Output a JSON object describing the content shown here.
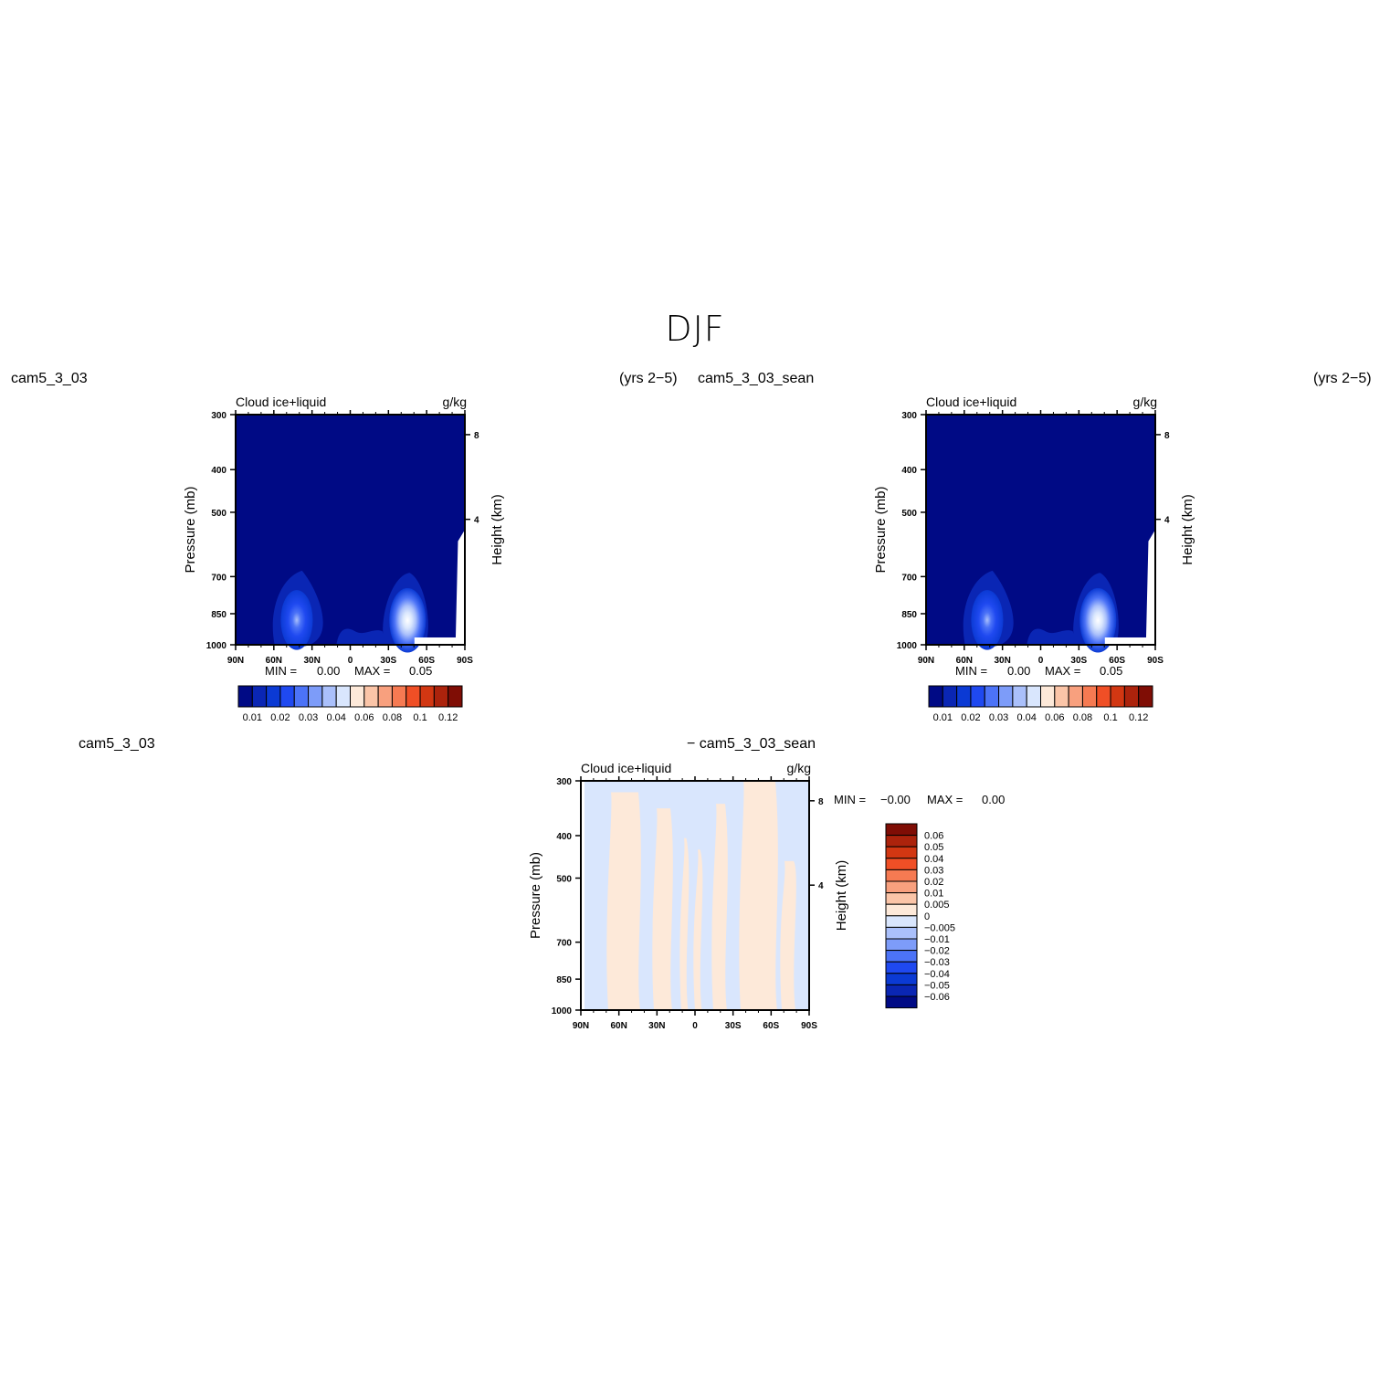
{
  "page_title": "DJF",
  "labels": {
    "top_left_case": "cam5_3_03",
    "top_left_years": "(yrs 2−5)",
    "top_right_case": "cam5_3_03_sean",
    "top_right_years": "(yrs 2−5)",
    "bottom_left_case": "cam5_3_03",
    "bottom_right_case": "− cam5_3_03_sean"
  },
  "colors": {
    "abs_scale": [
      "#000a85",
      "#0a26b4",
      "#0b3ad4",
      "#1f49f0",
      "#4c73f7",
      "#7d9cf9",
      "#aac0fb",
      "#d9e6fd",
      "#fde9d9",
      "#fbc5a8",
      "#f8a07e",
      "#f67a52",
      "#f04f26",
      "#d23712",
      "#ac230c",
      "#7f0d05"
    ],
    "diff_scale": [
      "#000a85",
      "#0a26b4",
      "#0b3ad4",
      "#1f49f0",
      "#4c73f7",
      "#7d9cf9",
      "#aac0fb",
      "#d9e6fd",
      "#fde9d9",
      "#fbc5a8",
      "#f8a07e",
      "#f67a52",
      "#f04f26",
      "#d23712",
      "#ac230c",
      "#7f0d05"
    ]
  },
  "chart_data": [
    {
      "type": "heatmap",
      "title": "Cloud ice+liquid",
      "units": "g/kg",
      "ylabel": "Pressure (mb)",
      "ylabel_right": "Height (km)",
      "x_ticks": [
        "90N",
        "60N",
        "30N",
        "0",
        "30S",
        "60S",
        "90S"
      ],
      "y_ticks": [
        "300",
        "400",
        "500",
        "700",
        "850",
        "1000"
      ],
      "y_ticks_right": [
        "8",
        "4"
      ],
      "ylim": [
        1000,
        300
      ],
      "stats": {
        "min_label": "MIN =",
        "min": "0.00",
        "max_label": "MAX =",
        "max": "0.05"
      },
      "colorbar_labels": [
        "0.01",
        "0.02",
        "0.03",
        "0.04",
        "0.06",
        "0.08",
        "0.1",
        "0.12"
      ],
      "levels": [
        0.005,
        0.01,
        0.015,
        0.02,
        0.025,
        0.03,
        0.035,
        0.04,
        0.05,
        0.06,
        0.07,
        0.08,
        0.09,
        0.1,
        0.11,
        0.12
      ],
      "maxima": [
        {
          "lat": 42,
          "p": 870,
          "value": 0.03
        },
        {
          "lat": -45,
          "p": 880,
          "value": 0.05
        }
      ]
    },
    {
      "type": "heatmap",
      "title": "Cloud ice+liquid",
      "units": "g/kg",
      "ylabel": "Pressure (mb)",
      "ylabel_right": "Height (km)",
      "x_ticks": [
        "90N",
        "60N",
        "30N",
        "0",
        "30S",
        "60S",
        "90S"
      ],
      "y_ticks": [
        "300",
        "400",
        "500",
        "700",
        "850",
        "1000"
      ],
      "y_ticks_right": [
        "8",
        "4"
      ],
      "ylim": [
        1000,
        300
      ],
      "stats": {
        "min_label": "MIN =",
        "min": "0.00",
        "max_label": "MAX =",
        "max": "0.05"
      },
      "colorbar_labels": [
        "0.01",
        "0.02",
        "0.03",
        "0.04",
        "0.06",
        "0.08",
        "0.1",
        "0.12"
      ],
      "levels": [
        0.005,
        0.01,
        0.015,
        0.02,
        0.025,
        0.03,
        0.035,
        0.04,
        0.05,
        0.06,
        0.07,
        0.08,
        0.09,
        0.1,
        0.11,
        0.12
      ],
      "maxima": [
        {
          "lat": 42,
          "p": 870,
          "value": 0.03
        },
        {
          "lat": -45,
          "p": 880,
          "value": 0.05
        }
      ]
    },
    {
      "type": "heatmap",
      "title": "Cloud ice+liquid",
      "units": "g/kg",
      "ylabel": "Pressure (mb)",
      "ylabel_right": "Height (km)",
      "x_ticks": [
        "90N",
        "60N",
        "30N",
        "0",
        "30S",
        "60S",
        "90S"
      ],
      "y_ticks": [
        "300",
        "400",
        "500",
        "700",
        "850",
        "1000"
      ],
      "y_ticks_right": [
        "8",
        "4"
      ],
      "ylim": [
        1000,
        300
      ],
      "stats": {
        "min_label": "MIN =",
        "min": "−0.00",
        "max_label": "MAX =",
        "max": "0.00"
      },
      "colorbar_labels": [
        "0.06",
        "0.05",
        "0.04",
        "0.03",
        "0.02",
        "0.01",
        "0.005",
        "0",
        "−0.005",
        "−0.01",
        "−0.02",
        "−0.03",
        "−0.04",
        "−0.05",
        "−0.06"
      ],
      "levels": [
        -0.06,
        -0.05,
        -0.04,
        -0.03,
        -0.02,
        -0.01,
        -0.005,
        0,
        0.005,
        0.01,
        0.02,
        0.03,
        0.04,
        0.05,
        0.06
      ]
    }
  ]
}
